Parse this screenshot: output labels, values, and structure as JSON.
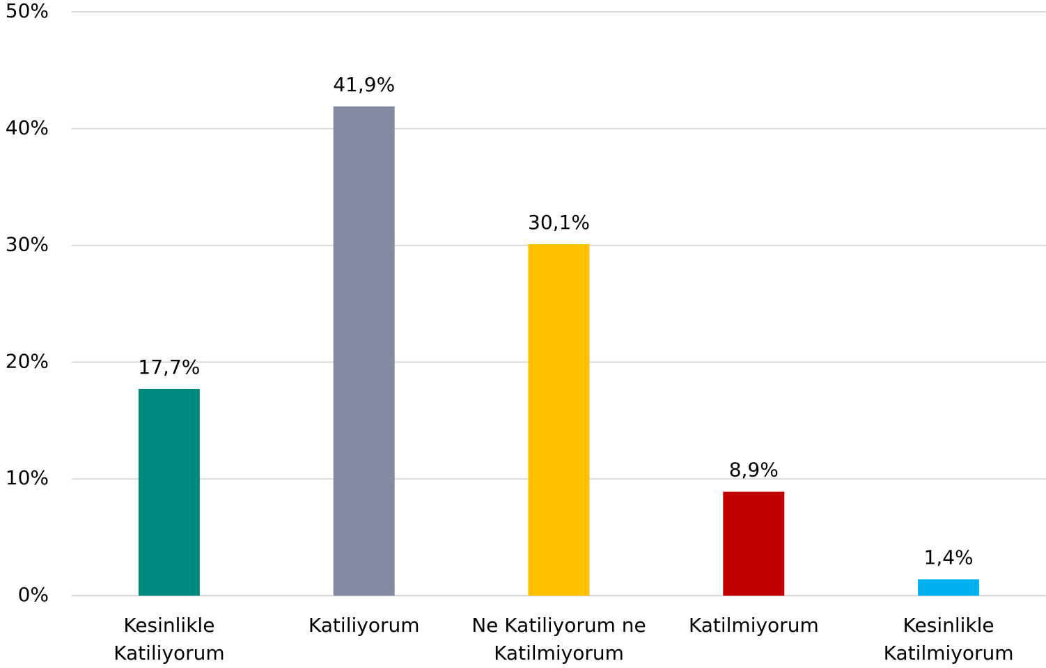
{
  "chart_data": {
    "type": "bar",
    "categories": [
      [
        "Kesinlikle",
        "Katiliyorum"
      ],
      [
        "Katiliyorum"
      ],
      [
        "Ne Katiliyorum ne",
        "Katilmiyorum"
      ],
      [
        "Katilmiyorum"
      ],
      [
        "Kesinlikle",
        "Katilmiyorum"
      ]
    ],
    "values": [
      17.7,
      41.9,
      30.1,
      8.9,
      1.4
    ],
    "value_labels": [
      "17,7%",
      "41,9%",
      "30,1%",
      "8,9%",
      "1,4%"
    ],
    "colors": [
      "#00897f",
      "#8589a3",
      "#ffc000",
      "#c00000",
      "#00b0f0"
    ],
    "ylim": [
      0,
      50
    ],
    "yticks": [
      {
        "value": 0,
        "label": "0%"
      },
      {
        "value": 10,
        "label": "10%"
      },
      {
        "value": 20,
        "label": "20%"
      },
      {
        "value": 30,
        "label": "30%"
      },
      {
        "value": 40,
        "label": "40%"
      },
      {
        "value": 50,
        "label": "50%"
      }
    ],
    "grid": true
  }
}
